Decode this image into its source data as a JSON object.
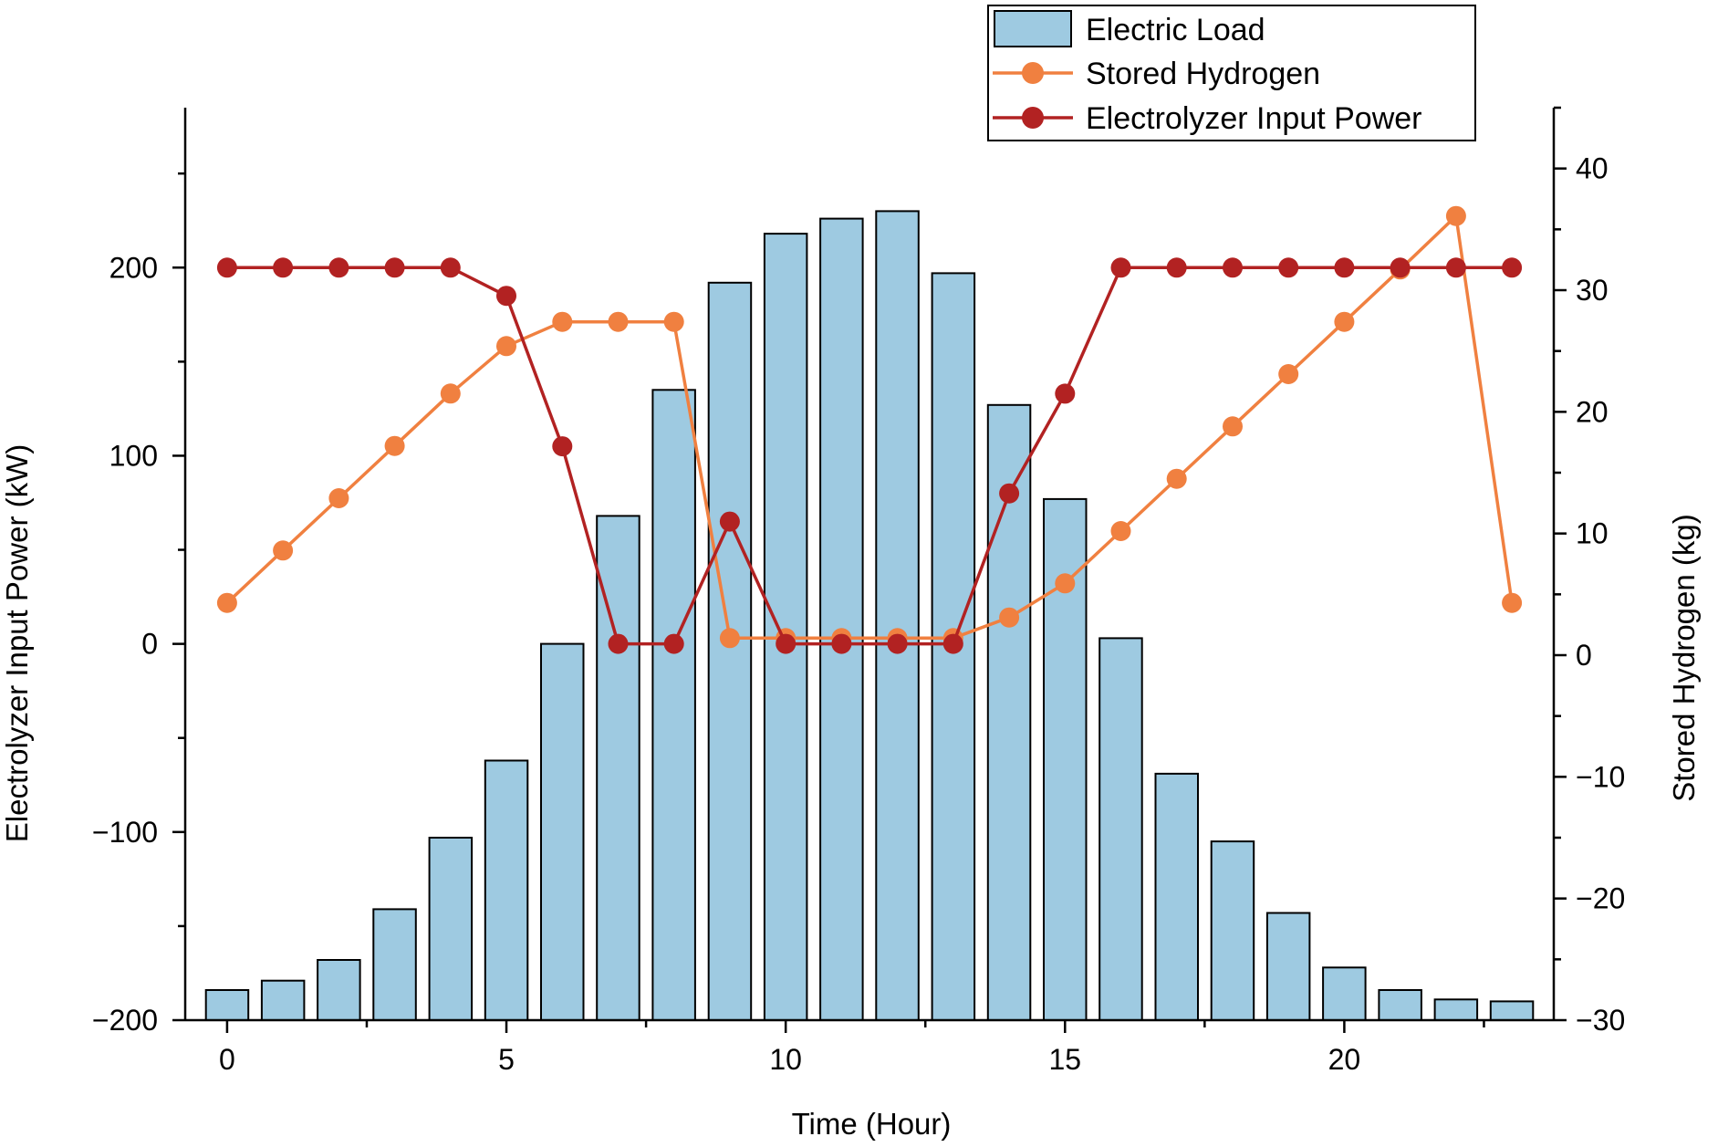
{
  "chart_data": {
    "type": "bar+line",
    "title": "",
    "xlabel": "Time (Hour)",
    "ylabel_left": "Electrolyzer Input Power (kW)",
    "ylabel_right": "Stored Hydrogen (kg)",
    "xlim": [
      -0.75,
      23.75
    ],
    "ylim_left": [
      -200,
      285
    ],
    "ylim_right": [
      -30,
      45
    ],
    "x_ticks": [
      0,
      5,
      10,
      15,
      20
    ],
    "x_tick_labels": [
      "0",
      "5",
      "10",
      "15",
      "20"
    ],
    "y_left_ticks": [
      -200,
      -100,
      0,
      100,
      200
    ],
    "y_left_tick_labels": [
      "−200",
      "−100",
      "0",
      "100",
      "200"
    ],
    "y_right_ticks": [
      -30,
      -20,
      -10,
      0,
      10,
      20,
      30,
      40
    ],
    "y_right_tick_labels": [
      "−30",
      "−20",
      "−10",
      "0",
      "10",
      "20",
      "30",
      "40"
    ],
    "hours": [
      0,
      1,
      2,
      3,
      4,
      5,
      6,
      7,
      8,
      9,
      10,
      11,
      12,
      13,
      14,
      15,
      16,
      17,
      18,
      19,
      20,
      21,
      22,
      23
    ],
    "legend_position": "top-right",
    "series": [
      {
        "name": "Electric Load",
        "kind": "bar",
        "axis": "left",
        "color": "#9ecae1",
        "edge_color": "#000000",
        "values": [
          -184,
          -179,
          -168,
          -141,
          -103,
          -62,
          0,
          68,
          135,
          192,
          218,
          226,
          230,
          197,
          127,
          77,
          3,
          -69,
          -105,
          -143,
          -172,
          -184,
          -189,
          -190
        ]
      },
      {
        "name": "Stored Hydrogen",
        "kind": "line",
        "axis": "right",
        "color": "#f08040",
        "values": [
          4.3,
          8.6,
          12.9,
          17.2,
          21.5,
          25.4,
          27.4,
          27.4,
          27.4,
          1.4,
          1.4,
          1.4,
          1.4,
          1.4,
          3.1,
          5.9,
          10.2,
          14.5,
          18.8,
          23.1,
          27.4,
          31.7,
          36.1,
          4.3
        ]
      },
      {
        "name": "Electrolyzer Input Power",
        "kind": "line",
        "axis": "left",
        "color": "#b22222",
        "values": [
          200,
          200,
          200,
          200,
          200,
          185,
          105,
          0,
          0,
          65,
          0,
          0,
          0,
          0,
          80,
          133,
          200,
          200,
          200,
          200,
          200,
          200,
          200,
          200
        ]
      }
    ]
  }
}
